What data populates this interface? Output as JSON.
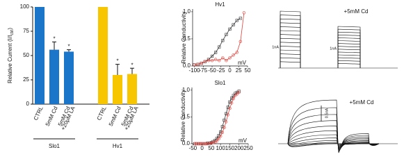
{
  "chart_data": [
    {
      "type": "bar",
      "y_label": [
        "Relative Current (I/I",
        "ctrl",
        ")"
      ],
      "categories": [
        "CTRL",
        "5mM Cd",
        [
          "5mM Cd",
          "+20μM LA"
        ]
      ],
      "series": [
        {
          "name": "Slo1",
          "color": "#1b75c9",
          "values": [
            100,
            56,
            54
          ],
          "errors": [
            0,
            8,
            2
          ],
          "significant": [
            false,
            true,
            true
          ]
        },
        {
          "name": "Hv1",
          "color": "#f7c600",
          "values": [
            100,
            30,
            31
          ],
          "errors": [
            0,
            11,
            6
          ],
          "significant": [
            false,
            true,
            true
          ]
        }
      ],
      "asterisk": "*",
      "ylim": [
        0,
        100
      ],
      "yticks": [
        0,
        25,
        50,
        75,
        100
      ]
    },
    {
      "type": "line",
      "title": "Hv1",
      "y_label": "Relative Conductivity",
      "x_unit": "mV",
      "x": [
        -100,
        -90,
        -80,
        -70,
        -60,
        -50,
        -40,
        -30,
        -20,
        -10,
        0,
        10,
        20,
        30,
        40
      ],
      "series": [
        {
          "color": "#333333",
          "marker": "square",
          "values": [
            0.02,
            0.03,
            0.05,
            0.08,
            0.12,
            0.18,
            0.25,
            0.35,
            0.47,
            0.58,
            0.68,
            0.76,
            0.84,
            0.88,
            null
          ]
        },
        {
          "color": "#e0413a",
          "marker": "circle",
          "values": [
            0.02,
            0.03,
            0.05,
            0.08,
            0.1,
            0.1,
            0.12,
            0.1,
            0.15,
            0.1,
            0.15,
            0.2,
            0.25,
            0.45,
            0.98
          ]
        }
      ],
      "xlim": [
        -105,
        50
      ],
      "xticks": [
        -100,
        -75,
        -50,
        -25,
        0,
        25,
        50
      ],
      "ylim": [
        0,
        1.05
      ],
      "yticks": [
        {
          "value": 0,
          "label": "0.0"
        },
        {
          "value": 0.5,
          "label": "0.5"
        },
        {
          "value": 1,
          "label": "1.0"
        }
      ]
    },
    {
      "type": "line",
      "title": "Slo1",
      "y_label": "Relative Conductivity",
      "x_unit": "mV",
      "x": [
        -40,
        -30,
        -20,
        -10,
        0,
        10,
        20,
        30,
        40,
        50,
        60,
        70,
        80,
        90,
        100,
        110,
        120,
        130,
        140,
        150,
        160,
        170,
        180,
        190,
        200
      ],
      "series": [
        {
          "color": "#333333",
          "marker": "square",
          "values": [
            0,
            0,
            0,
            0,
            0,
            0,
            0,
            0.01,
            0.01,
            0.02,
            0.04,
            0.06,
            0.1,
            0.15,
            0.22,
            0.32,
            0.44,
            0.56,
            0.68,
            0.78,
            0.85,
            0.9,
            0.94,
            0.96,
            0.98
          ]
        },
        {
          "color": "#e0413a",
          "marker": "circle",
          "values": [
            0,
            0,
            0,
            0,
            0,
            0,
            0,
            0,
            0.01,
            0.01,
            0.02,
            0.03,
            0.05,
            0.09,
            0.14,
            0.21,
            0.3,
            0.41,
            0.54,
            0.66,
            0.76,
            0.84,
            0.9,
            0.93,
            0.96
          ]
        }
      ],
      "xlim": [
        -55,
        250
      ],
      "xticks": [
        -50,
        0,
        50,
        100,
        150,
        200,
        250
      ],
      "ylim": [
        0,
        1.05
      ],
      "yticks": [
        {
          "value": 0,
          "label": "0.0"
        },
        {
          "value": 0.5,
          "label": "0.5"
        },
        {
          "value": 1,
          "label": "1.0"
        }
      ]
    }
  ],
  "traces": {
    "top_label": "+5mM Cd",
    "top_scale_left": "1nA",
    "top_scale_right": "1nA",
    "bottom_label": "+5mM Cd",
    "bottom_scale": "0.5nA"
  }
}
